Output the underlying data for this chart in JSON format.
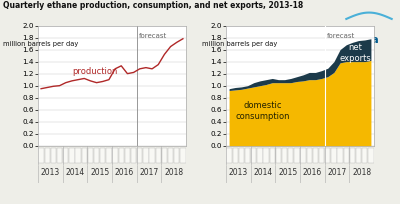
{
  "title": "Quarterly ethane production, consumption, and net exports, 2013-18",
  "ylabel": "million barrels per day",
  "ylim": [
    0.0,
    2.0
  ],
  "yticks": [
    0.0,
    0.2,
    0.4,
    0.6,
    0.8,
    1.0,
    1.2,
    1.4,
    1.6,
    1.8,
    2.0
  ],
  "year_labels": [
    "2013",
    "2014",
    "2015",
    "2016",
    "2017",
    "2018"
  ],
  "forecast_q": 15.5,
  "production_color": "#b02828",
  "consumption_color": "#f5b800",
  "exports_color": "#1c3a4a",
  "bg_color": "#eeeee8",
  "plot_bg": "#ffffff",
  "forecast_label": "forecast",
  "production_label": "production",
  "consumption_label": "domestic\nconsumption",
  "exports_label": "net\nexports",
  "eia_color": "#005A8E",
  "tickbar_color": "#d8d8d0",
  "tickbar_square_color": "#f8f8f4",
  "production_data": [
    0.95,
    0.97,
    0.99,
    1.0,
    1.05,
    1.08,
    1.1,
    1.12,
    1.08,
    1.05,
    1.07,
    1.1,
    1.28,
    1.33,
    1.2,
    1.22,
    1.28,
    1.3,
    1.28,
    1.35,
    1.52,
    1.65,
    1.72,
    1.78
  ],
  "consumption_data": [
    0.92,
    0.93,
    0.94,
    0.96,
    0.98,
    1.0,
    1.02,
    1.05,
    1.05,
    1.05,
    1.05,
    1.07,
    1.08,
    1.1,
    1.1,
    1.12,
    1.15,
    1.22,
    1.38,
    1.4,
    1.4,
    1.4,
    1.4,
    1.42
  ],
  "exports_data": [
    0.03,
    0.04,
    0.04,
    0.04,
    0.07,
    0.08,
    0.08,
    0.07,
    0.05,
    0.05,
    0.07,
    0.08,
    0.1,
    0.12,
    0.12,
    0.13,
    0.14,
    0.18,
    0.22,
    0.28,
    0.32,
    0.35,
    0.36,
    0.36
  ]
}
